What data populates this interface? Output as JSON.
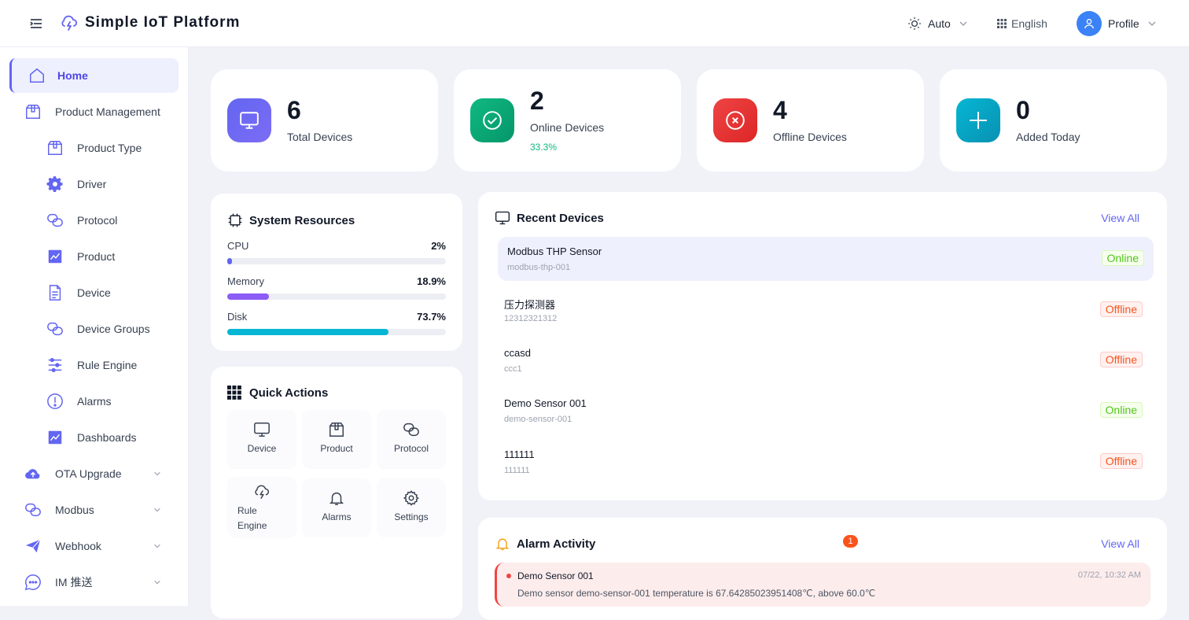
{
  "app": {
    "title": "Simple IoT Platform"
  },
  "header": {
    "theme_label": "Auto",
    "language_label": "English",
    "profile_label": "Profile"
  },
  "sidebar": {
    "items": [
      {
        "label": "Home",
        "icon": "home-icon"
      },
      {
        "label": "Product Management",
        "icon": "package-icon"
      },
      {
        "label": "Product Type",
        "icon": "package-icon"
      },
      {
        "label": "Driver",
        "icon": "gear-icon"
      },
      {
        "label": "Protocol",
        "icon": "link-icon"
      },
      {
        "label": "Product",
        "icon": "chart-icon"
      },
      {
        "label": "Device",
        "icon": "document-icon"
      },
      {
        "label": "Device Groups",
        "icon": "link-icon"
      },
      {
        "label": "Rule Engine",
        "icon": "sliders-icon"
      },
      {
        "label": "Alarms",
        "icon": "alert-circle-icon"
      },
      {
        "label": "Dashboards",
        "icon": "chart-icon"
      },
      {
        "label": "OTA Upgrade",
        "icon": "cloud-upload-icon"
      },
      {
        "label": "Modbus",
        "icon": "link-icon"
      },
      {
        "label": "Webhook",
        "icon": "send-icon"
      },
      {
        "label": "IM 推送",
        "icon": "chat-icon"
      }
    ]
  },
  "stats": [
    {
      "value": "6",
      "label": "Total Devices",
      "color": "#6366f1"
    },
    {
      "value": "2",
      "label": "Online Devices",
      "sub": "33.3%",
      "color": "#10b981"
    },
    {
      "value": "4",
      "label": "Offline Devices",
      "color": "#ef4444"
    },
    {
      "value": "0",
      "label": "Added Today",
      "color": "#06b6d4"
    }
  ],
  "resources": {
    "title": "System Resources",
    "items": [
      {
        "name": "CPU",
        "value": "2%",
        "percent": 2,
        "color": "#6366f1"
      },
      {
        "name": "Memory",
        "value": "18.9%",
        "percent": 18.9,
        "color": "#8b5cf6"
      },
      {
        "name": "Disk",
        "value": "73.7%",
        "percent": 73.7,
        "color": "#06b6d4"
      }
    ]
  },
  "quick_actions": {
    "title": "Quick Actions",
    "items": [
      {
        "label": "Device",
        "icon": "monitor-icon"
      },
      {
        "label": "Product",
        "icon": "package-icon"
      },
      {
        "label": "Protocol",
        "icon": "link-icon"
      },
      {
        "label": "Rule Engine",
        "icon": "cloud-lightning-icon"
      },
      {
        "label": "Alarms",
        "icon": "bell-icon"
      },
      {
        "label": "Settings",
        "icon": "gear-icon"
      }
    ]
  },
  "recent_devices": {
    "title": "Recent Devices",
    "view_all": "View All",
    "items": [
      {
        "name": "Modbus THP Sensor",
        "id": "modbus-thp-001",
        "status": "Online"
      },
      {
        "name": "压力探测器",
        "id": "12312321312",
        "status": "Offline"
      },
      {
        "name": "ccasd",
        "id": "ccc1",
        "status": "Offline"
      },
      {
        "name": "Demo Sensor 001",
        "id": "demo-sensor-001",
        "status": "Online"
      },
      {
        "name": "111111",
        "id": "111111",
        "status": "Offline"
      }
    ]
  },
  "alarm_activity": {
    "title": "Alarm Activity",
    "count": "1",
    "view_all": "View All",
    "items": [
      {
        "device": "Demo Sensor 001",
        "time": "07/22, 10:32 AM",
        "message": "Demo sensor demo-sensor-001 temperature is 67.64285023951408℃, above 60.0℃"
      }
    ]
  }
}
